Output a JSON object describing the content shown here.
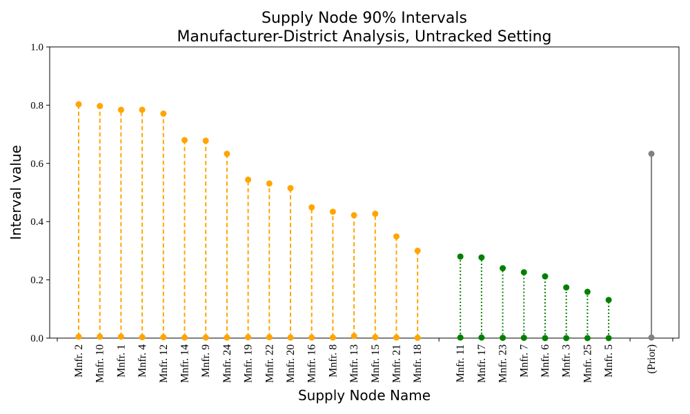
{
  "chart_data": {
    "type": "lollipop",
    "title_line1": "Supply Node 90% Intervals",
    "title_line2": "Manufacturer-District Analysis, Untracked Setting",
    "xlabel": "Supply Node Name",
    "ylabel": "Interval value",
    "ylim": [
      0,
      1
    ],
    "yticks": [
      "0.0",
      "0.2",
      "0.4",
      "0.6",
      "0.8",
      "1.0"
    ],
    "groups": [
      {
        "color": "#FFA500",
        "line_style": "dashed",
        "items": [
          {
            "label": "Mnfr. 2",
            "low": 0.005,
            "high": 0.803
          },
          {
            "label": "Mnfr. 10",
            "low": 0.005,
            "high": 0.797
          },
          {
            "label": "Mnfr. 1",
            "low": 0.005,
            "high": 0.784
          },
          {
            "label": "Mnfr. 4",
            "low": 0.003,
            "high": 0.784
          },
          {
            "label": "Mnfr. 12",
            "low": 0.003,
            "high": 0.771
          },
          {
            "label": "Mnfr. 14",
            "low": 0.002,
            "high": 0.68
          },
          {
            "label": "Mnfr. 9",
            "low": 0.002,
            "high": 0.678
          },
          {
            "label": "Mnfr. 24",
            "low": 0.002,
            "high": 0.633
          },
          {
            "label": "Mnfr. 19",
            "low": 0.003,
            "high": 0.544
          },
          {
            "label": "Mnfr. 22",
            "low": 0.003,
            "high": 0.531
          },
          {
            "label": "Mnfr. 20",
            "low": 0.002,
            "high": 0.515
          },
          {
            "label": "Mnfr. 16",
            "low": 0.002,
            "high": 0.449
          },
          {
            "label": "Mnfr. 8",
            "low": 0.002,
            "high": 0.434
          },
          {
            "label": "Mnfr. 13",
            "low": 0.007,
            "high": 0.422
          },
          {
            "label": "Mnfr. 15",
            "low": 0.003,
            "high": 0.427
          },
          {
            "label": "Mnfr. 21",
            "low": 0.002,
            "high": 0.349
          },
          {
            "label": "Mnfr. 18",
            "low": 0.001,
            "high": 0.3
          }
        ]
      },
      {
        "color": "#008000",
        "line_style": "dotted",
        "items": [
          {
            "label": "Mnfr. 11",
            "low": 0.002,
            "high": 0.28
          },
          {
            "label": "Mnfr. 17",
            "low": 0.002,
            "high": 0.277
          },
          {
            "label": "Mnfr. 23",
            "low": 0.001,
            "high": 0.24
          },
          {
            "label": "Mnfr. 7",
            "low": 0.001,
            "high": 0.226
          },
          {
            "label": "Mnfr. 6",
            "low": 0.0,
            "high": 0.212
          },
          {
            "label": "Mnfr. 3",
            "low": 0.0,
            "high": 0.174
          },
          {
            "label": "Mnfr. 25",
            "low": 0.0,
            "high": 0.159
          },
          {
            "label": "Mnfr. 5",
            "low": 0.0,
            "high": 0.131
          }
        ]
      },
      {
        "color": "#808080",
        "line_style": "solid",
        "items": [
          {
            "label": "(Prior)",
            "low": 0.002,
            "high": 0.633
          }
        ]
      }
    ]
  }
}
